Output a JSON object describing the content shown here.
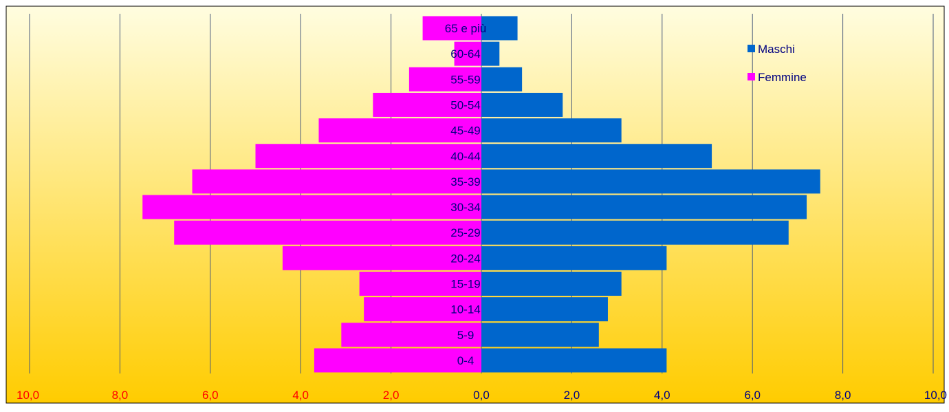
{
  "chart_data": {
    "type": "bar",
    "orientation": "horizontal",
    "subtype": "population-pyramid",
    "categories": [
      "0-4",
      "5-9",
      "10-14",
      "15-19",
      "20-24",
      "25-29",
      "30-34",
      "35-39",
      "40-44",
      "45-49",
      "50-54",
      "55-59",
      "60-64",
      "65 e più"
    ],
    "series": [
      {
        "name": "Maschi",
        "side": "right",
        "color": "#0066cc",
        "values": [
          4.1,
          2.6,
          2.8,
          3.1,
          4.1,
          6.8,
          7.2,
          7.5,
          5.1,
          3.1,
          1.8,
          0.9,
          0.4,
          0.8
        ]
      },
      {
        "name": "Femmine",
        "side": "left",
        "color": "#ff00ff",
        "values": [
          3.7,
          3.1,
          2.6,
          2.7,
          4.4,
          6.8,
          7.5,
          6.4,
          5.0,
          3.6,
          2.4,
          1.6,
          0.6,
          1.3
        ]
      }
    ],
    "xlim": [
      -10,
      10
    ],
    "x_ticks": [
      -10,
      -8,
      -6,
      -4,
      -2,
      0,
      2,
      4,
      6,
      8,
      10
    ],
    "x_tick_labels": [
      "10,0",
      "8,0",
      "6,0",
      "4,0",
      "2,0",
      "0,0",
      "2,0",
      "4,0",
      "6,0",
      "8,0",
      "10,0"
    ],
    "left_tick_color": "#ff0000",
    "right_tick_color": "#000080",
    "category_label_color": "#000080",
    "grid": "vertical",
    "legend_position": "top-right",
    "background_gradient": [
      "#fffde0",
      "#ffcc00"
    ]
  }
}
